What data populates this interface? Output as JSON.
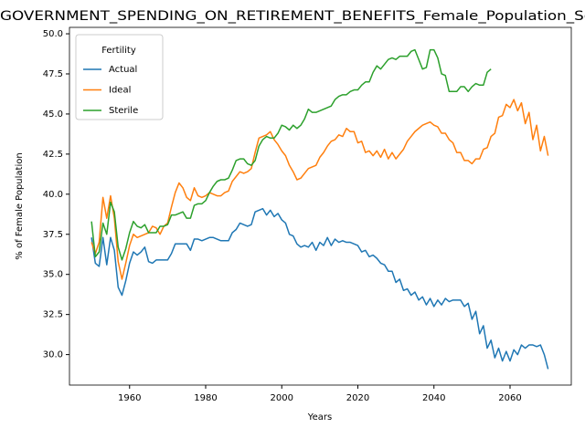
{
  "chart_data": {
    "type": "line",
    "title": "GOVERNMENT_SPENDING_ON_RETIREMENT_BENEFITS_Female_Population_Sc",
    "x_label": "Years",
    "y_label": "% of Female Population",
    "legend_title": "Fertility",
    "legend_loc": "upper left",
    "x": [
      1950,
      1951,
      1952,
      1953,
      1954,
      1955,
      1956,
      1957,
      1958,
      1959,
      1960,
      1961,
      1962,
      1963,
      1964,
      1965,
      1966,
      1967,
      1968,
      1969,
      1970,
      1971,
      1972,
      1973,
      1974,
      1975,
      1976,
      1977,
      1978,
      1979,
      1980,
      1981,
      1982,
      1983,
      1984,
      1985,
      1986,
      1987,
      1988,
      1989,
      1990,
      1991,
      1992,
      1993,
      1994,
      1995,
      1996,
      1997,
      1998,
      1999,
      2000,
      2001,
      2002,
      2003,
      2004,
      2005,
      2006,
      2007,
      2008,
      2009,
      2010,
      2011,
      2012,
      2013,
      2014,
      2015,
      2016,
      2017,
      2018,
      2019,
      2020,
      2021,
      2022,
      2023,
      2024,
      2025,
      2026,
      2027,
      2028,
      2029,
      2030,
      2031,
      2032,
      2033,
      2034,
      2035,
      2036,
      2037,
      2038,
      2039,
      2040,
      2041,
      2042,
      2043,
      2044,
      2045,
      2046,
      2047,
      2048,
      2049,
      2050,
      2051,
      2052,
      2053,
      2054,
      2055,
      2056,
      2057,
      2058,
      2059,
      2060,
      2061,
      2062,
      2063,
      2064,
      2065,
      2066,
      2067,
      2068,
      2069,
      2070
    ],
    "series": [
      {
        "name": "Actual",
        "color": "#1f77b4",
        "values": [
          37.3,
          35.7,
          35.5,
          37.3,
          35.6,
          37.3,
          36.5,
          34.2,
          33.7,
          34.6,
          35.7,
          36.4,
          36.2,
          36.4,
          36.7,
          35.8,
          35.7,
          35.9,
          35.9,
          35.9,
          35.9,
          36.3,
          36.9,
          36.9,
          36.9,
          36.9,
          36.5,
          37.2,
          37.2,
          37.1,
          37.2,
          37.3,
          37.3,
          37.2,
          37.1,
          37.1,
          37.1,
          37.6,
          37.8,
          38.2,
          38.1,
          38.0,
          38.1,
          38.9,
          39.0,
          39.1,
          38.7,
          39.0,
          38.6,
          38.8,
          38.4,
          38.2,
          37.5,
          37.4,
          36.9,
          36.7,
          36.8,
          36.7,
          37.0,
          36.5,
          37.0,
          36.8,
          37.3,
          36.8,
          37.2,
          37.0,
          37.1,
          37.0,
          37.0,
          36.9,
          36.8,
          36.4,
          36.5,
          36.1,
          36.2,
          36.0,
          35.7,
          35.6,
          35.2,
          35.2,
          34.5,
          34.7,
          34.0,
          34.1,
          33.7,
          33.9,
          33.4,
          33.6,
          33.1,
          33.5,
          33.0,
          33.4,
          33.1,
          33.5,
          33.3,
          33.4,
          33.4,
          33.4,
          33.0,
          33.2,
          32.2,
          32.7,
          31.3,
          31.8,
          30.4,
          30.9,
          29.8,
          30.4,
          29.6,
          30.2,
          29.6,
          30.3,
          30.0,
          30.6,
          30.4,
          30.6,
          30.6,
          30.5,
          30.6,
          30.0,
          29.1
        ]
      },
      {
        "name": "Ideal",
        "color": "#ff7f0e",
        "values": [
          37.0,
          36.3,
          37.0,
          39.8,
          38.5,
          39.9,
          38.5,
          35.8,
          34.7,
          35.7,
          36.8,
          37.5,
          37.3,
          37.4,
          37.5,
          37.6,
          38.0,
          37.9,
          37.5,
          38.0,
          38.2,
          39.2,
          40.1,
          40.7,
          40.4,
          39.8,
          39.6,
          40.4,
          39.9,
          39.8,
          39.9,
          40.1,
          40.0,
          39.9,
          39.9,
          40.1,
          40.2,
          40.8,
          41.1,
          41.4,
          41.3,
          41.4,
          41.6,
          42.6,
          43.5,
          43.6,
          43.7,
          43.9,
          43.4,
          43.1,
          42.7,
          42.4,
          41.8,
          41.4,
          40.9,
          41.0,
          41.3,
          41.6,
          41.7,
          41.8,
          42.3,
          42.6,
          43.0,
          43.3,
          43.4,
          43.7,
          43.6,
          44.1,
          43.9,
          43.9,
          43.2,
          43.3,
          42.6,
          42.7,
          42.4,
          42.7,
          42.3,
          42.8,
          42.2,
          42.6,
          42.2,
          42.5,
          42.8,
          43.3,
          43.6,
          43.9,
          44.1,
          44.3,
          44.4,
          44.5,
          44.3,
          44.2,
          43.8,
          43.8,
          43.4,
          43.2,
          42.6,
          42.6,
          42.1,
          42.1,
          41.9,
          42.2,
          42.2,
          42.8,
          42.9,
          43.6,
          43.8,
          44.8,
          44.9,
          45.6,
          45.4,
          45.9,
          45.2,
          45.7,
          44.4,
          45.1,
          43.4,
          44.3,
          42.7,
          43.6,
          42.4
        ]
      },
      {
        "name": "Sterile",
        "color": "#2ca02c",
        "values": [
          38.3,
          36.1,
          36.4,
          38.2,
          37.5,
          39.5,
          38.9,
          36.7,
          35.9,
          36.6,
          37.6,
          38.3,
          38.0,
          37.9,
          38.1,
          37.6,
          37.6,
          37.6,
          38.0,
          38.0,
          38.1,
          38.7,
          38.7,
          38.8,
          38.9,
          38.5,
          38.5,
          39.3,
          39.4,
          39.4,
          39.6,
          40.1,
          40.5,
          40.8,
          40.9,
          40.9,
          41.0,
          41.5,
          42.1,
          42.2,
          42.2,
          41.9,
          41.8,
          42.1,
          43.0,
          43.4,
          43.6,
          43.5,
          43.5,
          43.8,
          44.3,
          44.2,
          44.0,
          44.3,
          44.1,
          44.3,
          44.7,
          45.3,
          45.1,
          45.1,
          45.2,
          45.3,
          45.4,
          45.5,
          45.9,
          46.1,
          46.2,
          46.2,
          46.4,
          46.5,
          46.5,
          46.8,
          47.0,
          47.0,
          47.6,
          48.0,
          47.8,
          48.1,
          48.4,
          48.5,
          48.4,
          48.6,
          48.6,
          48.6,
          48.9,
          49.0,
          48.4,
          47.8,
          47.9,
          49.0,
          49.0,
          48.5,
          47.5,
          47.4,
          46.4,
          46.4,
          46.4,
          46.7,
          46.7,
          46.4,
          46.7,
          46.9,
          46.8,
          46.8,
          47.6,
          47.8,
          null,
          null,
          null,
          null,
          null,
          null,
          null,
          null,
          null,
          null,
          null,
          null,
          null,
          null,
          null
        ]
      }
    ],
    "xlim": [
      1944.2,
      2076.1
    ],
    "ylim": [
      28.1,
      50.4
    ],
    "xticks": [
      1960,
      1980,
      2000,
      2020,
      2040,
      2060
    ],
    "yticks": [
      {
        "value": 30,
        "label": "30.0"
      },
      32.5,
      {
        "value": 35,
        "label": "35.0"
      },
      37.5,
      {
        "value": 40,
        "label": "40.0"
      },
      42.5,
      {
        "value": 45,
        "label": "45.0"
      },
      47.5,
      {
        "value": 50,
        "label": "50.0"
      }
    ]
  }
}
